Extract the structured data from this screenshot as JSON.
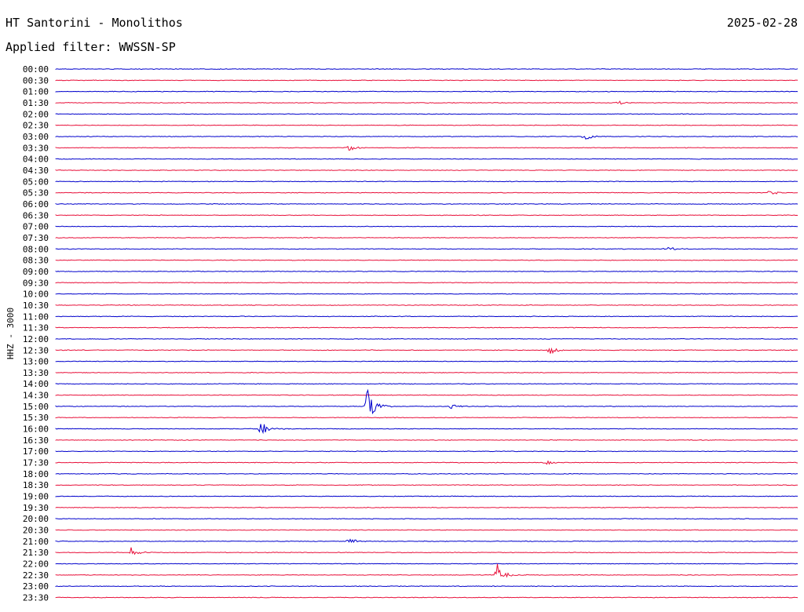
{
  "header": {
    "station": "HT Santorini - Monolithos",
    "date": "2025-02-28",
    "filter": "Applied filter: WWSSN-SP"
  },
  "chart_data": {
    "type": "line",
    "title": "HT Santorini - Monolithos",
    "channel_label": "HHZ - 3000",
    "trace_labels": [
      "00:00",
      "00:30",
      "01:00",
      "01:30",
      "02:00",
      "02:30",
      "03:00",
      "03:30",
      "04:00",
      "04:30",
      "05:00",
      "05:30",
      "06:00",
      "06:30",
      "07:00",
      "07:30",
      "08:00",
      "08:30",
      "09:00",
      "09:30",
      "10:00",
      "10:30",
      "11:00",
      "11:30",
      "12:00",
      "12:30",
      "13:00",
      "13:30",
      "14:00",
      "14:30",
      "15:00",
      "15:30",
      "16:00",
      "16:30",
      "17:00",
      "17:30",
      "18:00",
      "18:30",
      "19:00",
      "19:30",
      "20:00",
      "20:30",
      "21:00",
      "21:30",
      "22:00",
      "22:30",
      "23:00",
      "23:30"
    ],
    "colors": {
      "even": "#0000cc",
      "odd": "#e8103a"
    },
    "events": [
      {
        "row": "03:00",
        "minute": 21.3,
        "amp": 6
      },
      {
        "row": "03:30",
        "minute": 11.8,
        "amp": 5
      },
      {
        "row": "05:30",
        "minute": 28.8,
        "amp": 5
      },
      {
        "row": "08:00",
        "minute": 24.6,
        "amp": 5
      },
      {
        "row": "12:30",
        "minute": 19.9,
        "amp": 8
      },
      {
        "row": "15:00",
        "minute": 12.5,
        "amp": 32
      },
      {
        "row": "15:00",
        "minute": 15.9,
        "amp": 8
      },
      {
        "row": "16:00",
        "minute": 8.2,
        "amp": 14
      },
      {
        "row": "17:30",
        "minute": 19.7,
        "amp": 5
      },
      {
        "row": "21:00",
        "minute": 11.8,
        "amp": 5
      },
      {
        "row": "21:30",
        "minute": 3.0,
        "amp": 9
      },
      {
        "row": "22:30",
        "minute": 17.8,
        "amp": 16
      },
      {
        "row": "01:30",
        "minute": 22.7,
        "amp": 3
      }
    ]
  }
}
